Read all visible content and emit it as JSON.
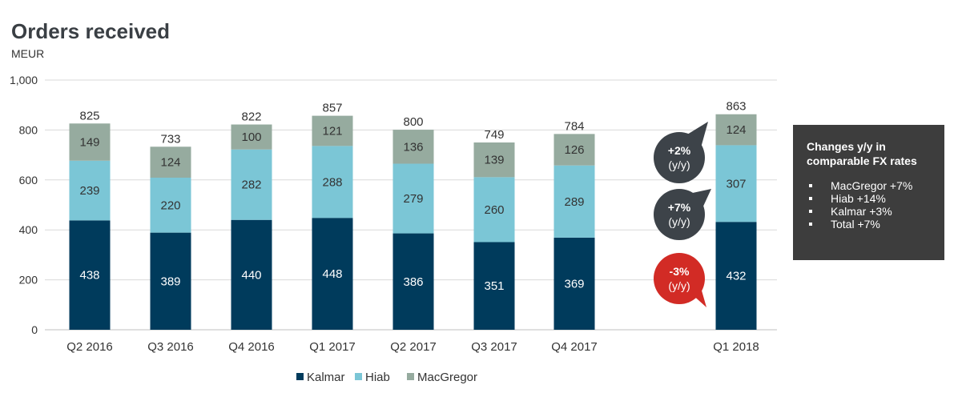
{
  "header": {
    "title": "Orders received",
    "unit": "MEUR"
  },
  "chart_data": {
    "type": "bar",
    "stacked": true,
    "categories": [
      "Q2 2016",
      "Q3 2016",
      "Q4 2016",
      "Q1 2017",
      "Q2 2017",
      "Q3 2017",
      "Q4 2017",
      "Q1 2018"
    ],
    "series": [
      {
        "name": "Kalmar",
        "color": "#003b5c",
        "values": [
          438,
          389,
          440,
          448,
          386,
          351,
          369,
          432
        ]
      },
      {
        "name": "Hiab",
        "color": "#7bc6d6",
        "values": [
          239,
          220,
          282,
          288,
          279,
          260,
          289,
          307
        ]
      },
      {
        "name": "MacGregor",
        "color": "#96ab9f",
        "values": [
          149,
          124,
          100,
          121,
          136,
          139,
          126,
          124
        ]
      }
    ],
    "totals": [
      "825",
      "733",
      "822",
      "857",
      "800",
      "749",
      "784",
      "863"
    ],
    "yticks": [
      "0",
      "200",
      "400",
      "600",
      "800",
      "1,000"
    ],
    "ylim": [
      0,
      1000
    ],
    "grid": true,
    "legend_position": "bottom"
  },
  "callouts": [
    {
      "main": "+2%",
      "sub": "(y/y)",
      "color": "#3d4349",
      "segment": "MacGregor"
    },
    {
      "main": "+7%",
      "sub": "(y/y)",
      "color": "#3d4349",
      "segment": "Hiab"
    },
    {
      "main": "-3%",
      "sub": "(y/y)",
      "color": "#d22b25",
      "segment": "Kalmar"
    }
  ],
  "infobox": {
    "title": "Changes y/y in comparable FX rates",
    "items": [
      "MacGregor +7%",
      "Hiab +14%",
      "Kalmar +3%",
      "Total +7%"
    ]
  }
}
